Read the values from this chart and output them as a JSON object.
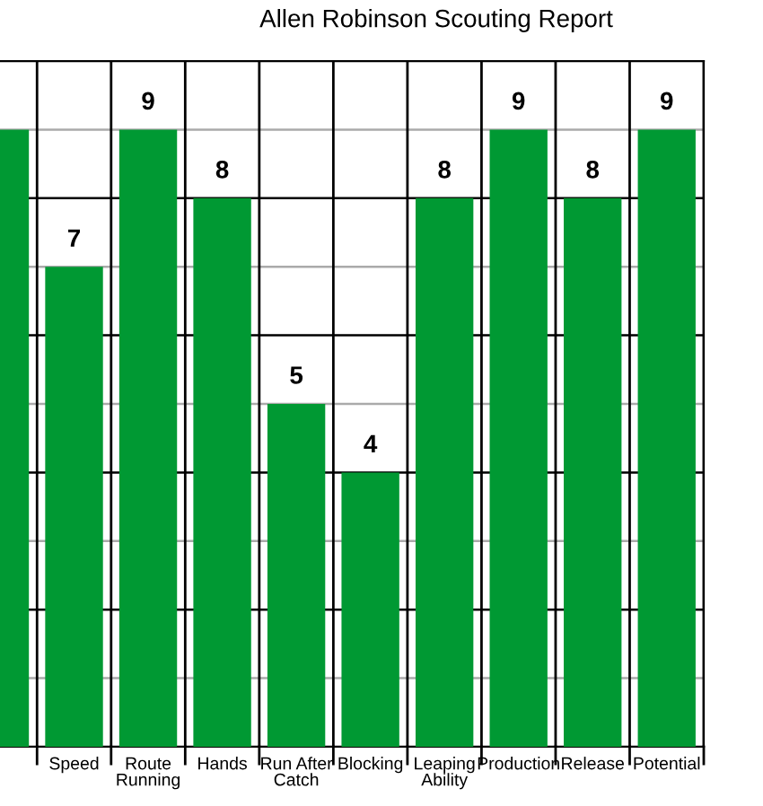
{
  "chart_data": {
    "type": "bar",
    "title": "Allen Robinson Scouting Report",
    "categories": [
      null,
      "Speed",
      "Route\nRunning",
      "Hands",
      "Run After\nCatch",
      "Blocking",
      "Leaping\nAbility",
      "Production",
      "Release",
      "Potential"
    ],
    "values": [
      9,
      7,
      9,
      8,
      5,
      4,
      8,
      9,
      8,
      9
    ],
    "value_labels": [
      null,
      "7",
      "9",
      "8",
      "5",
      "4",
      "8",
      "9",
      "8",
      "9"
    ],
    "color": "#009933",
    "ylim": [
      0,
      10
    ],
    "yticks": [
      {
        "value": 0,
        "label": null
      },
      {
        "value": 1,
        "label": null
      },
      {
        "value": 2,
        "label": null
      },
      {
        "value": 3,
        "label": null
      },
      {
        "value": 4,
        "label": null
      },
      {
        "value": 5,
        "label": null
      },
      {
        "value": 6,
        "label": null
      },
      {
        "value": 7,
        "label": null
      },
      {
        "value": 8,
        "label": null
      },
      {
        "value": 9,
        "label": null
      },
      {
        "value": 10,
        "label": null
      }
    ],
    "grid": true,
    "tick_labels": "x"
  }
}
